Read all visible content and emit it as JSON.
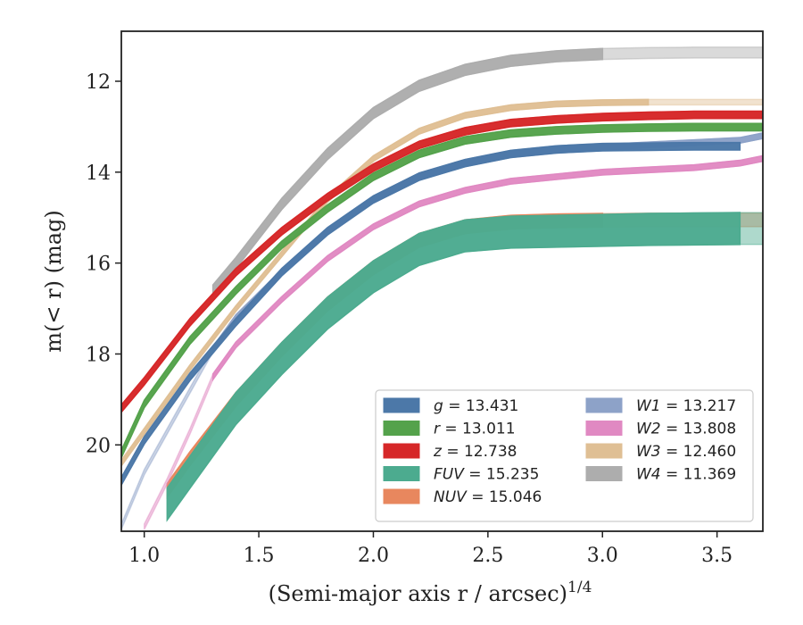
{
  "chart_data": {
    "type": "line",
    "xlabel": "(Semi-major axis r / arcsec)",
    "xlabel_exponent": "1/4",
    "ylabel": "m(< r) (mag)",
    "xlim": [
      0.9,
      3.7
    ],
    "ylim": [
      21.9,
      10.9
    ],
    "y_inverted": true,
    "xticks": [
      "1.0",
      "1.5",
      "2.0",
      "2.5",
      "3.0",
      "3.5"
    ],
    "yticks": [
      "12",
      "14",
      "16",
      "18",
      "20"
    ],
    "legend_position": "lower-right",
    "grid": false,
    "series": [
      {
        "name": "g = 13.431",
        "symbol": "g",
        "value": "13.431",
        "color": "#4c78a8",
        "x": [
          0.9,
          1.0,
          1.2,
          1.4,
          1.6,
          1.8,
          2.0,
          2.2,
          2.4,
          2.6,
          2.8,
          3.0,
          3.2,
          3.4,
          3.6
        ],
        "y": [
          20.8,
          19.9,
          18.5,
          17.3,
          16.2,
          15.3,
          14.6,
          14.1,
          13.8,
          13.6,
          13.5,
          13.45,
          13.44,
          13.43,
          13.43
        ],
        "band": 0.08,
        "fade_x": 3.6
      },
      {
        "name": "r = 13.011",
        "symbol": "r",
        "value": "13.011",
        "color": "#54a24b",
        "x": [
          0.9,
          1.0,
          1.2,
          1.4,
          1.6,
          1.8,
          2.0,
          2.2,
          2.4,
          2.6,
          2.8,
          3.0,
          3.2,
          3.4,
          3.6,
          3.7
        ],
        "y": [
          20.2,
          19.1,
          17.7,
          16.6,
          15.6,
          14.8,
          14.1,
          13.6,
          13.3,
          13.15,
          13.08,
          13.04,
          13.02,
          13.01,
          13.01,
          13.01
        ],
        "band": 0.08,
        "fade_x": 3.7
      },
      {
        "name": "z = 12.738",
        "symbol": "z",
        "value": "12.738",
        "color": "#d62728",
        "x": [
          0.9,
          1.0,
          1.2,
          1.4,
          1.6,
          1.8,
          2.0,
          2.2,
          2.4,
          2.6,
          2.8,
          3.0,
          3.2,
          3.4,
          3.6,
          3.7
        ],
        "y": [
          19.2,
          18.6,
          17.3,
          16.2,
          15.3,
          14.55,
          13.9,
          13.4,
          13.1,
          12.92,
          12.84,
          12.79,
          12.76,
          12.74,
          12.74,
          12.74
        ],
        "band": 0.08,
        "fade_x": 3.7
      },
      {
        "name": "FUV = 15.235",
        "symbol": "FUV",
        "value": "15.235",
        "color": "#4cab8f",
        "x": [
          1.1,
          1.2,
          1.4,
          1.6,
          1.8,
          2.0,
          2.2,
          2.4,
          2.6,
          2.8,
          3.0,
          3.2,
          3.4,
          3.6,
          3.7
        ],
        "y": [
          21.3,
          20.6,
          19.2,
          18.1,
          17.1,
          16.3,
          15.7,
          15.4,
          15.32,
          15.3,
          15.28,
          15.26,
          15.25,
          15.24,
          15.24
        ],
        "band": 0.35,
        "fade_x": 3.6
      },
      {
        "name": "NUV = 15.046",
        "symbol": "NUV",
        "value": "15.046",
        "color": "#e8875e",
        "x": [
          1.1,
          1.2,
          1.4,
          1.6,
          1.8,
          2.0,
          2.2,
          2.4,
          2.6,
          2.8,
          3.0,
          3.2,
          3.4,
          3.6,
          3.7
        ],
        "y": [
          21.0,
          20.3,
          19.0,
          17.9,
          16.9,
          16.1,
          15.5,
          15.2,
          15.1,
          15.07,
          15.06,
          15.05,
          15.05,
          15.05,
          15.05
        ],
        "band": 0.15,
        "fade_x": 3.1
      },
      {
        "name": "W1 = 13.217",
        "symbol": "W1",
        "value": "13.217",
        "color": "#8da2c8",
        "x": [
          0.9,
          1.0,
          1.2,
          1.3,
          1.4,
          1.6,
          1.8,
          2.0,
          2.2,
          2.4,
          2.6,
          2.8,
          3.0,
          3.2,
          3.4,
          3.6,
          3.7
        ],
        "y": [
          21.8,
          20.6,
          18.8,
          17.9,
          17.2,
          16.2,
          15.3,
          14.6,
          14.1,
          13.8,
          13.6,
          13.5,
          13.45,
          13.4,
          13.35,
          13.3,
          13.2
        ],
        "band": 0.06,
        "fade_x": 1.3
      },
      {
        "name": "W2 = 13.808",
        "symbol": "W2",
        "value": "13.808",
        "color": "#e089c2",
        "x": [
          1.0,
          1.1,
          1.2,
          1.3,
          1.4,
          1.6,
          1.8,
          2.0,
          2.2,
          2.4,
          2.6,
          2.8,
          3.0,
          3.2,
          3.4,
          3.6,
          3.7
        ],
        "y": [
          21.8,
          20.8,
          19.7,
          18.5,
          17.8,
          16.8,
          15.9,
          15.2,
          14.7,
          14.4,
          14.2,
          14.1,
          14.0,
          13.95,
          13.9,
          13.8,
          13.7
        ],
        "band": 0.06,
        "fade_x": 1.3
      },
      {
        "name": "W3 = 12.460",
        "symbol": "W3",
        "value": "12.460",
        "color": "#dfbf94",
        "x": [
          0.9,
          1.0,
          1.2,
          1.4,
          1.6,
          1.8,
          2.0,
          2.2,
          2.4,
          2.6,
          2.8,
          3.0,
          3.2,
          3.4,
          3.6,
          3.7
        ],
        "y": [
          20.4,
          19.7,
          18.3,
          17.0,
          15.8,
          14.6,
          13.7,
          13.1,
          12.75,
          12.58,
          12.5,
          12.47,
          12.46,
          12.46,
          12.46,
          12.46
        ],
        "band": 0.06,
        "fade_x": 3.3
      },
      {
        "name": "W4 = 11.369",
        "symbol": "W4",
        "value": "11.369",
        "color": "#adadad",
        "x": [
          1.3,
          1.4,
          1.6,
          1.8,
          2.0,
          2.2,
          2.4,
          2.6,
          2.8,
          3.0,
          3.2,
          3.4,
          3.6,
          3.7
        ],
        "y": [
          16.6,
          16.0,
          14.7,
          13.6,
          12.7,
          12.1,
          11.75,
          11.55,
          11.45,
          11.4,
          11.38,
          11.37,
          11.37,
          11.37
        ],
        "band": 0.12,
        "fade_x": 3.15
      }
    ]
  }
}
